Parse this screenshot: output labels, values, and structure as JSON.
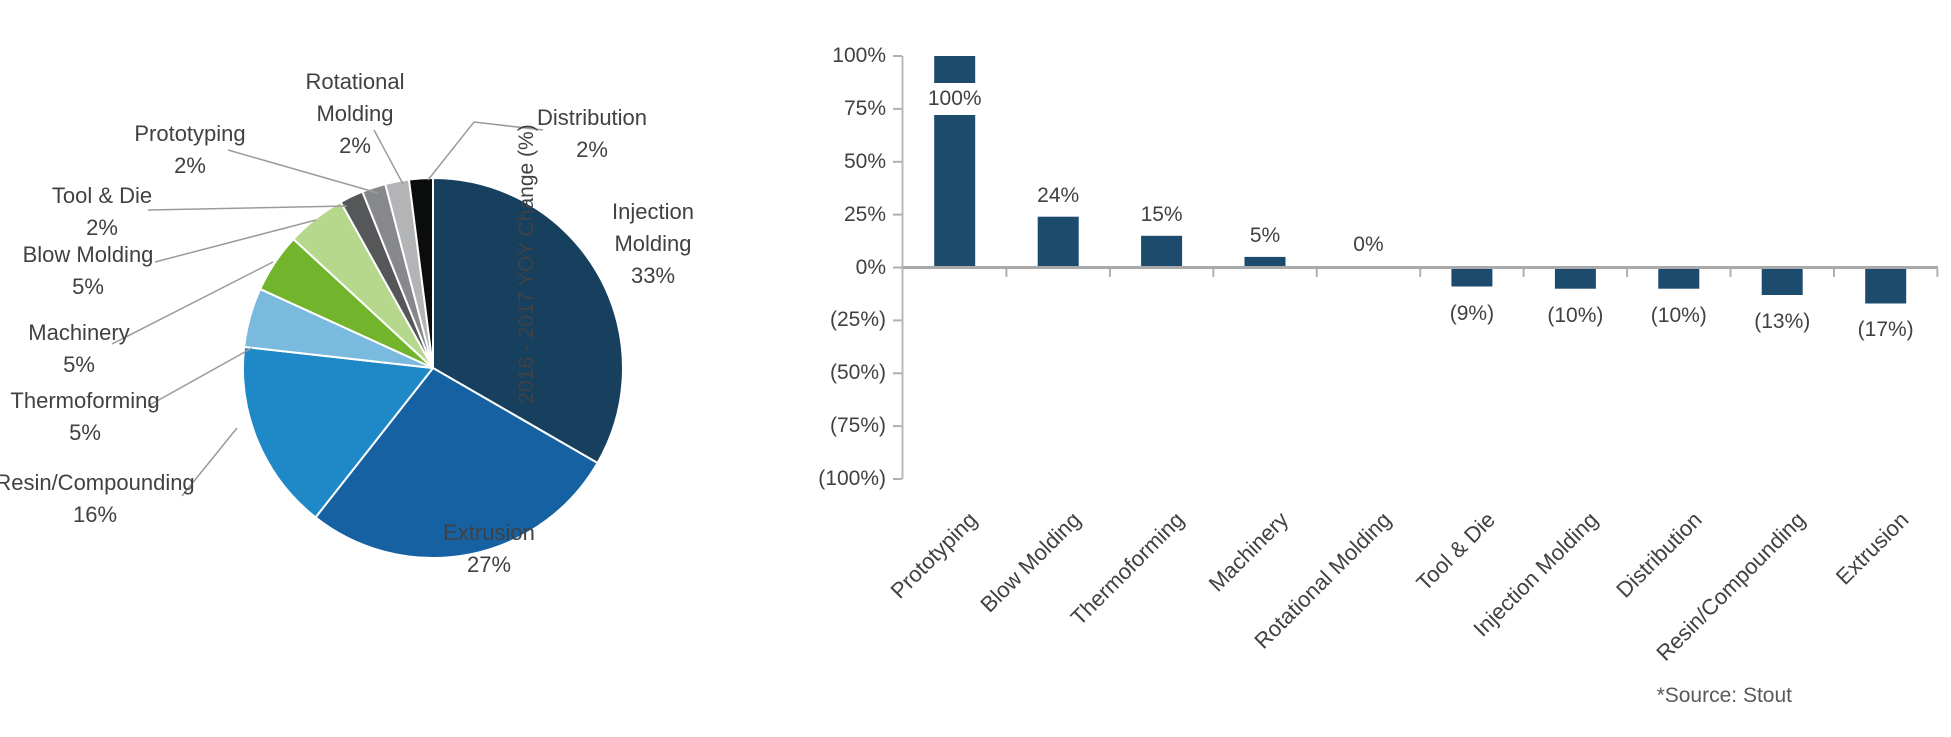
{
  "source_note": "*Source: Stout",
  "colors": {
    "bar_navy": "#1c4b6e",
    "axis_gray": "#a9a9a9",
    "tick_gray": "#b0b0b0",
    "leader_gray": "#9b9b9b",
    "text_gray": "#414042"
  },
  "chart_data": [
    {
      "type": "pie",
      "title": "",
      "legend_position": "outside-labels",
      "segments": [
        {
          "label": "Injection Molding",
          "value": 33,
          "display": "33%",
          "color": "#17405f"
        },
        {
          "label": "Extrusion",
          "value": 27,
          "display": "27%",
          "color": "#1561a2"
        },
        {
          "label": "Resin/Compounding",
          "value": 16,
          "display": "16%",
          "color": "#1f88c7"
        },
        {
          "label": "Thermoforming",
          "value": 5,
          "display": "5%",
          "color": "#79bade"
        },
        {
          "label": "Machinery",
          "value": 5,
          "display": "5%",
          "color": "#72b52d"
        },
        {
          "label": "Blow Molding",
          "value": 5,
          "display": "5%",
          "color": "#b6d88d"
        },
        {
          "label": "Tool & Die",
          "value": 2,
          "display": "2%",
          "color": "#565759"
        },
        {
          "label": "Prototyping",
          "value": 2,
          "display": "2%",
          "color": "#86888b"
        },
        {
          "label": "Rotational Molding",
          "value": 2,
          "display": "2%",
          "color": "#b2b4b6"
        },
        {
          "label": "Distribution",
          "value": 2,
          "display": "2%",
          "color": "#0b0c0c"
        }
      ]
    },
    {
      "type": "bar",
      "ylabel": "2016 - 2017 YOY Change (%)",
      "ylim": [
        -100,
        100
      ],
      "grid": false,
      "categories": [
        "Prototyping",
        "Blow Molding",
        "Thermoforming",
        "Machinery",
        "Rotational Molding",
        "Tool & Die",
        "Injection Molding",
        "Distribution",
        "Resin/Compounding",
        "Extrusion"
      ],
      "values": [
        100,
        24,
        15,
        5,
        0,
        -9,
        -10,
        -10,
        -13,
        -17
      ],
      "value_labels": [
        "100%",
        "24%",
        "15%",
        "5%",
        "0%",
        "(9%)",
        "(10%)",
        "(10%)",
        "(13%)",
        "(17%)"
      ],
      "y_ticks": [
        "100%",
        "75%",
        "50%",
        "25%",
        "0%",
        "(25%)",
        "(50%)",
        "(75%)",
        "(100%)"
      ],
      "y_tick_values": [
        100,
        75,
        50,
        25,
        0,
        -25,
        -50,
        -75,
        -100
      ]
    }
  ]
}
